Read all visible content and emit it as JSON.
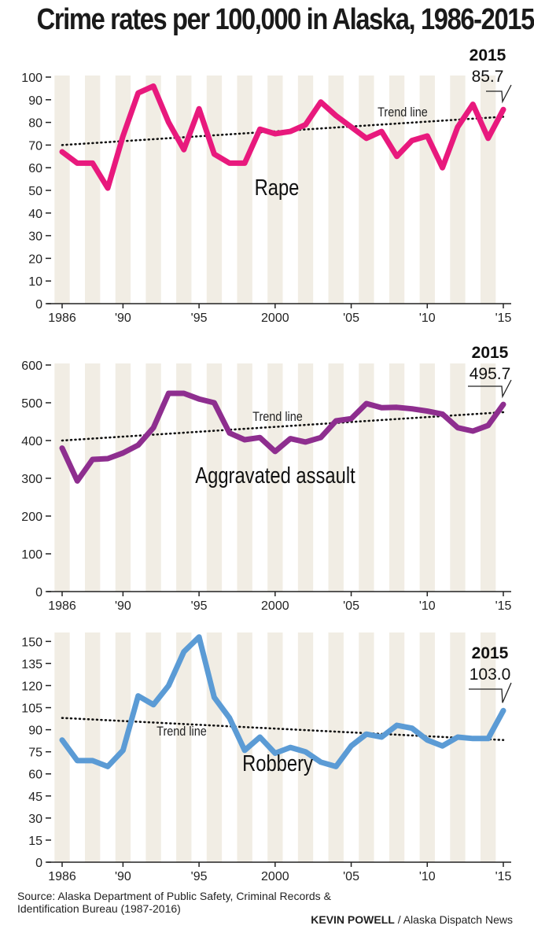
{
  "title": "Crime rates per 100,000 in Alaska, 1986-2015",
  "source": "Source: Alaska Department of Public Safety, Criminal Records & Identification Bureau (1987-2016)",
  "credit": {
    "author": "KEVIN POWELL",
    "separator": " / ",
    "publication": "Alaska Dispatch News"
  },
  "colors": {
    "stripe": "#f1ede4",
    "axis": "#222222",
    "trend": "#111111"
  },
  "chart_data": [
    {
      "type": "line",
      "title": "Rape",
      "color": "#e8197d",
      "x": [
        1986,
        1987,
        1988,
        1989,
        1990,
        1991,
        1992,
        1993,
        1994,
        1995,
        1996,
        1997,
        1998,
        1999,
        2000,
        2001,
        2002,
        2003,
        2004,
        2005,
        2006,
        2007,
        2008,
        2009,
        2010,
        2011,
        2012,
        2013,
        2014,
        2015
      ],
      "values": [
        67,
        62,
        62,
        51,
        74,
        93,
        96,
        80,
        68,
        86,
        66,
        62,
        62,
        77,
        75,
        76,
        79,
        89,
        83,
        78,
        73,
        76,
        65,
        72,
        74,
        60,
        78,
        88,
        73,
        85.7
      ],
      "ylim": [
        0,
        100
      ],
      "yticks": [
        "0",
        "10",
        "20",
        "30",
        "40",
        "50",
        "60",
        "70",
        "80",
        "90",
        "100"
      ],
      "xtick_labels": [
        "1986",
        "'90",
        "'95",
        "2000",
        "'05",
        "'10",
        "'15"
      ],
      "xtick_years": [
        1986,
        1990,
        1995,
        2000,
        2005,
        2010,
        2015
      ],
      "trend": {
        "label": "Trend line",
        "start": 70,
        "end": 82.5
      },
      "callout": {
        "year": "2015",
        "value": "85.7"
      }
    },
    {
      "type": "line",
      "title": "Aggravated assault",
      "color": "#8e2e8f",
      "x": [
        1986,
        1987,
        1988,
        1989,
        1990,
        1991,
        1992,
        1993,
        1994,
        1995,
        1996,
        1997,
        1998,
        1999,
        2000,
        2001,
        2002,
        2003,
        2004,
        2005,
        2006,
        2007,
        2008,
        2009,
        2010,
        2011,
        2012,
        2013,
        2014,
        2015
      ],
      "values": [
        380,
        293,
        350,
        352,
        367,
        388,
        434,
        525,
        525,
        510,
        500,
        420,
        402,
        408,
        371,
        405,
        396,
        408,
        452,
        458,
        498,
        487,
        488,
        484,
        478,
        470,
        434,
        425,
        440,
        495.7
      ],
      "ylim": [
        0,
        600
      ],
      "yticks": [
        "0",
        "100",
        "200",
        "300",
        "400",
        "500",
        "600"
      ],
      "xtick_labels": [
        "1986",
        "'90",
        "'95",
        "2000",
        "'05",
        "'10",
        "'15"
      ],
      "xtick_years": [
        1986,
        1990,
        1995,
        2000,
        2005,
        2010,
        2015
      ],
      "trend": {
        "label": "Trend line",
        "start": 400,
        "end": 475
      },
      "callout": {
        "year": "2015",
        "value": "495.7"
      }
    },
    {
      "type": "line",
      "title": "Robbery",
      "color": "#5b9bd5",
      "x": [
        1986,
        1987,
        1988,
        1989,
        1990,
        1991,
        1992,
        1993,
        1994,
        1995,
        1996,
        1997,
        1998,
        1999,
        2000,
        2001,
        2002,
        2003,
        2004,
        2005,
        2006,
        2007,
        2008,
        2009,
        2010,
        2011,
        2012,
        2013,
        2014,
        2015
      ],
      "values": [
        83,
        69,
        69,
        65,
        76,
        113,
        107,
        120,
        143,
        153,
        112,
        98,
        76,
        85,
        74,
        78,
        75,
        68,
        65,
        79,
        87,
        85,
        93,
        91,
        83,
        79,
        85,
        84,
        84,
        103.0
      ],
      "ylim": [
        0,
        155
      ],
      "yticks": [
        "0",
        "15",
        "30",
        "45",
        "60",
        "75",
        "90",
        "105",
        "120",
        "135",
        "150"
      ],
      "ytick_values": [
        0,
        15,
        30,
        45,
        60,
        75,
        90,
        105,
        120,
        135,
        150
      ],
      "xtick_labels": [
        "1986",
        "'90",
        "'95",
        "2000",
        "'05",
        "'10",
        "'15"
      ],
      "xtick_years": [
        1986,
        1990,
        1995,
        2000,
        2005,
        2010,
        2015
      ],
      "trend": {
        "label": "Trend line",
        "start": 98,
        "end": 83
      },
      "callout": {
        "year": "2015",
        "value": "103.0"
      }
    }
  ]
}
